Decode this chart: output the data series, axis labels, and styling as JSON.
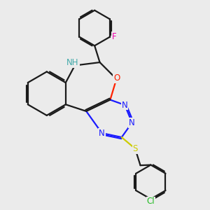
{
  "bg_color": "#ebebeb",
  "bond_color": "#1a1a1a",
  "N_color": "#1a1aff",
  "O_color": "#ff2200",
  "S_color": "#cccc00",
  "F_color": "#ee00aa",
  "Cl_color": "#22bb22",
  "H_color": "#44aaaa",
  "line_width": 1.6,
  "font_size": 8.5,
  "xlim": [
    0,
    10
  ],
  "ylim": [
    0,
    10
  ]
}
